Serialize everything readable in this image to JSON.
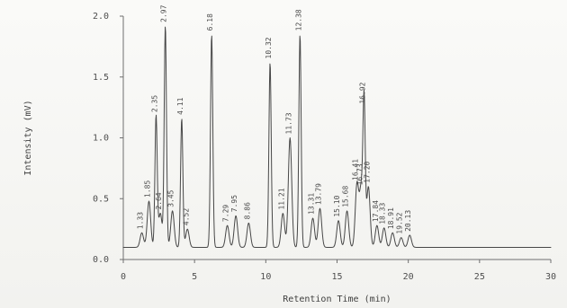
{
  "chart_data": {
    "type": "line",
    "xlabel": "Retention Time (min)",
    "ylabel": "Intensity (mV)",
    "xlim": [
      0,
      30
    ],
    "ylim": [
      0,
      2.0
    ],
    "x_ticks": [
      {
        "value": 0,
        "label": "0"
      },
      {
        "value": 5,
        "label": "5"
      },
      {
        "value": 10,
        "label": "10"
      },
      {
        "value": 15,
        "label": "15"
      },
      {
        "value": 20,
        "label": "20"
      },
      {
        "value": 25,
        "label": "25"
      },
      {
        "value": 30,
        "label": "30"
      }
    ],
    "y_ticks": [
      {
        "value": 0,
        "label": "0.0"
      },
      {
        "value": 0.5,
        "label": "0.5"
      },
      {
        "value": 1.0,
        "label": "1.0"
      },
      {
        "value": 1.5,
        "label": "1.5"
      },
      {
        "value": 2.0,
        "label": "2.0"
      }
    ],
    "grid": false,
    "baseline": 0.1,
    "peaks": [
      {
        "rt": 1.3,
        "height": 0.22,
        "label": "1.33"
      },
      {
        "rt": 1.8,
        "height": 0.48,
        "label": "1.85"
      },
      {
        "rt": 2.3,
        "height": 1.18,
        "label": "2.35"
      },
      {
        "rt": 2.6,
        "height": 0.38,
        "label": "2.64"
      },
      {
        "rt": 2.95,
        "height": 1.92,
        "label": "2.97"
      },
      {
        "rt": 3.45,
        "height": 0.4,
        "label": "3.45"
      },
      {
        "rt": 4.1,
        "height": 1.16,
        "label": "4.11"
      },
      {
        "rt": 4.5,
        "height": 0.25,
        "label": "4.52"
      },
      {
        "rt": 6.2,
        "height": 1.85,
        "label": "6.18"
      },
      {
        "rt": 7.3,
        "height": 0.28,
        "label": "7.29"
      },
      {
        "rt": 7.9,
        "height": 0.36,
        "label": "7.95"
      },
      {
        "rt": 8.8,
        "height": 0.3,
        "label": "8.86"
      },
      {
        "rt": 10.3,
        "height": 1.62,
        "label": "10.32"
      },
      {
        "rt": 11.2,
        "height": 0.38,
        "label": "11.21"
      },
      {
        "rt": 11.7,
        "height": 1.0,
        "label": "11.73"
      },
      {
        "rt": 12.4,
        "height": 1.85,
        "label": "12.38"
      },
      {
        "rt": 13.3,
        "height": 0.34,
        "label": "13.31"
      },
      {
        "rt": 13.8,
        "height": 0.42,
        "label": "13.79"
      },
      {
        "rt": 15.1,
        "height": 0.32,
        "label": "15.10"
      },
      {
        "rt": 15.7,
        "height": 0.4,
        "label": "15.68"
      },
      {
        "rt": 16.4,
        "height": 0.62,
        "label": "16.41"
      },
      {
        "rt": 16.7,
        "height": 0.58,
        "label": "16.73"
      },
      {
        "rt": 16.9,
        "height": 1.25,
        "label": "16.92"
      },
      {
        "rt": 17.2,
        "height": 0.6,
        "label": "17.20"
      },
      {
        "rt": 17.8,
        "height": 0.28,
        "label": "17.84"
      },
      {
        "rt": 18.3,
        "height": 0.26,
        "label": "18.33"
      },
      {
        "rt": 18.9,
        "height": 0.22,
        "label": "18.91"
      },
      {
        "rt": 19.5,
        "height": 0.18,
        "label": "19.52"
      },
      {
        "rt": 20.1,
        "height": 0.2,
        "label": "20.13"
      }
    ]
  }
}
